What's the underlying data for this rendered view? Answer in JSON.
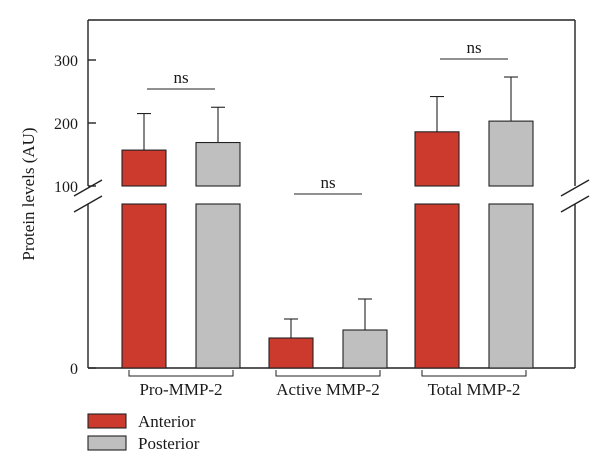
{
  "chart_data": {
    "type": "bar",
    "ylabel": "Protein levels (AU)",
    "axis_break": true,
    "yticks_upper": [
      "100",
      "200",
      "300"
    ],
    "yticks_lower": [
      "0"
    ],
    "categories": [
      "Pro-MMP-2",
      "Active MMP-2",
      "Total MMP-2"
    ],
    "series": [
      {
        "name": "Anterior",
        "color": "#cc3a2e",
        "values": [
          157,
          30,
          186
        ],
        "errors": [
          58,
          19,
          56
        ]
      },
      {
        "name": "Posterior",
        "color": "#bfbfbf",
        "values": [
          169,
          38,
          203
        ],
        "errors": [
          56,
          31,
          70
        ]
      }
    ],
    "annotations": [
      "ns",
      "ns",
      "ns"
    ],
    "legend_position": "bottom-left"
  }
}
